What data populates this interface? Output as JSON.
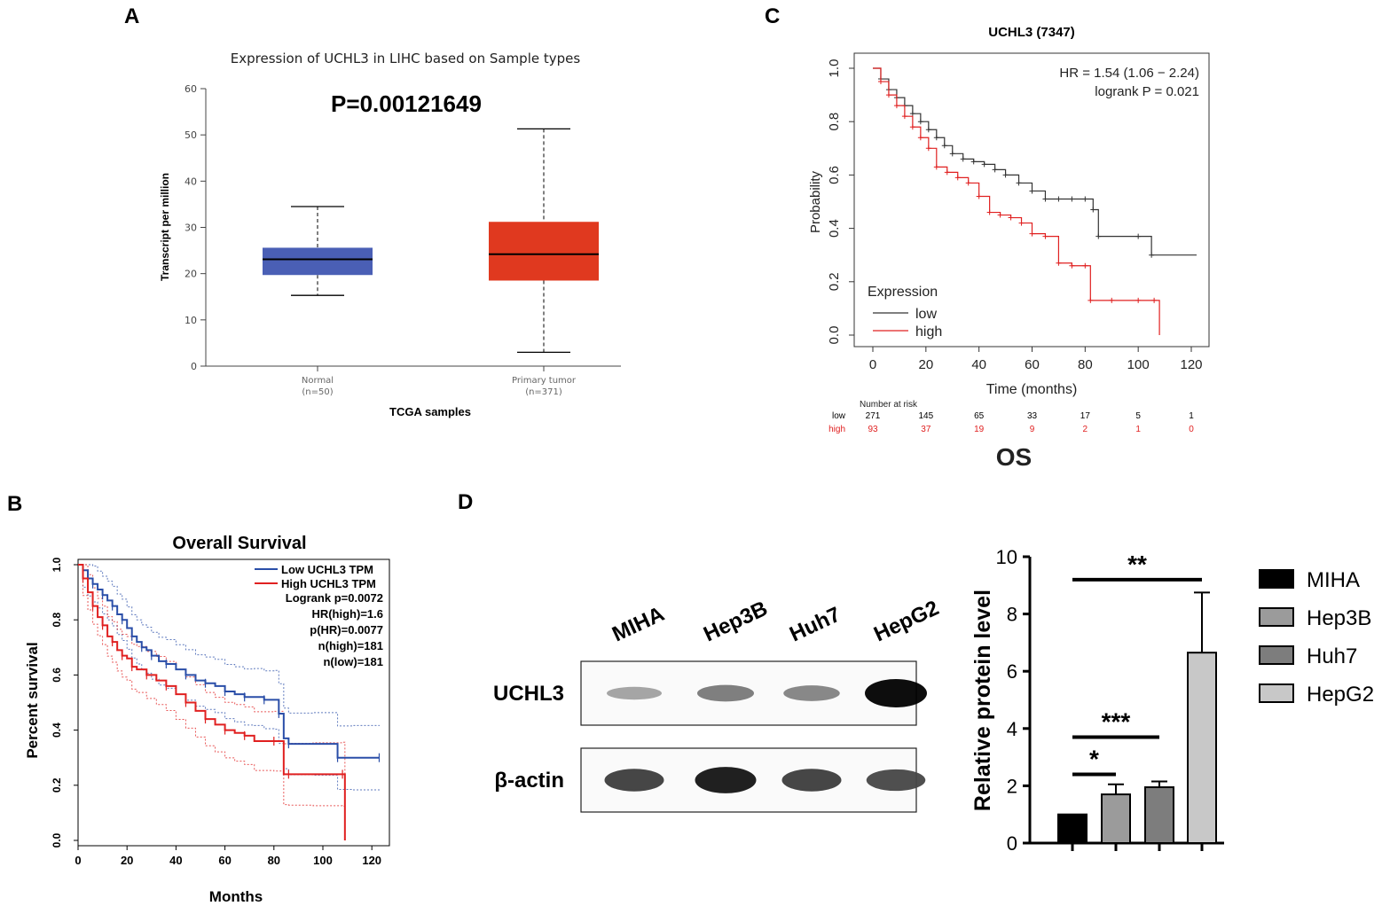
{
  "panels": {
    "a": "A",
    "b": "B",
    "c": "C",
    "d": "D"
  },
  "chart_data": [
    {
      "id": "A",
      "type": "box",
      "title": "Expression of UCHL3 in LIHC based on Sample types",
      "annotation": "P=0.00121649",
      "xlabel": "TCGA samples",
      "ylabel": "Transcript per million",
      "ylim": [
        0,
        60
      ],
      "yticks": [
        0,
        10,
        20,
        30,
        40,
        50,
        60
      ],
      "groups": [
        {
          "name": "Normal",
          "n": "(n=50)",
          "min": 15.3,
          "q1": 19.7,
          "median": 23.1,
          "q3": 25.6,
          "max": 34.5,
          "color": "#4a5fb5"
        },
        {
          "name": "Primary tumor",
          "n": "(n=371)",
          "min": 3.0,
          "q1": 18.5,
          "median": 24.2,
          "q3": 31.2,
          "max": 51.3,
          "color": "#e0391f"
        }
      ]
    },
    {
      "id": "B",
      "type": "line",
      "title": "Overall Survival",
      "xlabel": "Months",
      "ylabel": "Percent survival",
      "xlim": [
        0,
        125
      ],
      "ylim": [
        0,
        1
      ],
      "xticks": [
        0,
        20,
        40,
        60,
        80,
        100,
        120
      ],
      "yticks": [
        0.0,
        0.2,
        0.4,
        0.6,
        0.8,
        1.0
      ],
      "legend": [
        "Low UCHL3 TPM",
        "High UCHL3 TPM"
      ],
      "stats": [
        "Logrank p=0.0072",
        "HR(high)=1.6",
        "p(HR)=0.0077",
        "n(high)=181",
        "n(low)=181"
      ],
      "series": [
        {
          "name": "Low UCHL3 TPM",
          "color": "#2a4ea8",
          "x": [
            0,
            2,
            4,
            6,
            8,
            10,
            12,
            14,
            16,
            18,
            20,
            22,
            24,
            26,
            28,
            30,
            33,
            36,
            40,
            44,
            48,
            52,
            56,
            60,
            64,
            68,
            72,
            76,
            80,
            82,
            84,
            86,
            96,
            106,
            112,
            123
          ],
          "y": [
            1,
            0.98,
            0.95,
            0.93,
            0.91,
            0.89,
            0.87,
            0.85,
            0.82,
            0.8,
            0.77,
            0.74,
            0.72,
            0.7,
            0.69,
            0.67,
            0.65,
            0.64,
            0.62,
            0.6,
            0.58,
            0.57,
            0.56,
            0.54,
            0.53,
            0.52,
            0.52,
            0.51,
            0.51,
            0.46,
            0.37,
            0.35,
            0.35,
            0.3,
            0.3,
            0.3
          ]
        },
        {
          "name": "High UCHL3 TPM",
          "color": "#e02020",
          "x": [
            0,
            2,
            4,
            6,
            8,
            10,
            12,
            14,
            16,
            18,
            20,
            22,
            24,
            28,
            32,
            36,
            40,
            44,
            48,
            52,
            56,
            60,
            64,
            68,
            72,
            80,
            84,
            86,
            96,
            108,
            109
          ],
          "y": [
            1,
            0.95,
            0.9,
            0.85,
            0.81,
            0.78,
            0.74,
            0.72,
            0.69,
            0.67,
            0.66,
            0.63,
            0.62,
            0.6,
            0.58,
            0.56,
            0.53,
            0.5,
            0.47,
            0.44,
            0.42,
            0.4,
            0.39,
            0.38,
            0.36,
            0.36,
            0.24,
            0.24,
            0.24,
            0.24,
            0.0
          ]
        }
      ]
    },
    {
      "id": "C",
      "type": "line",
      "title": "UCHL3 (7347)",
      "xlabel": "Time (months)",
      "ylabel": "Probability",
      "xlim": [
        0,
        125
      ],
      "ylim": [
        0,
        1
      ],
      "xticks": [
        0,
        20,
        40,
        60,
        80,
        100,
        120
      ],
      "yticks": [
        0.0,
        0.2,
        0.4,
        0.6,
        0.8,
        1.0
      ],
      "annotation": [
        "HR = 1.54 (1.06 − 2.24)",
        "logrank P = 0.021"
      ],
      "legend_title": "Expression",
      "legend": [
        "low",
        "high"
      ],
      "risk_table": {
        "title": "Number at risk",
        "rows": [
          {
            "label": "low",
            "color": "#000000",
            "values": [
              "271",
              "145",
              "65",
              "33",
              "17",
              "5",
              "1"
            ]
          },
          {
            "label": "high",
            "color": "#e02020",
            "values": [
              "93",
              "37",
              "19",
              "9",
              "2",
              "1",
              "0"
            ]
          }
        ]
      },
      "footer": "OS",
      "series": [
        {
          "name": "low",
          "color": "#333333",
          "x": [
            0,
            3,
            6,
            9,
            12,
            15,
            18,
            21,
            24,
            27,
            30,
            34,
            38,
            42,
            46,
            50,
            55,
            60,
            65,
            70,
            75,
            80,
            83,
            85,
            100,
            105,
            122
          ],
          "y": [
            1,
            0.96,
            0.92,
            0.89,
            0.86,
            0.83,
            0.8,
            0.77,
            0.74,
            0.71,
            0.68,
            0.66,
            0.65,
            0.64,
            0.62,
            0.6,
            0.57,
            0.54,
            0.51,
            0.51,
            0.51,
            0.51,
            0.47,
            0.37,
            0.37,
            0.3,
            0.3
          ]
        },
        {
          "name": "high",
          "color": "#e02020",
          "x": [
            0,
            3,
            6,
            9,
            12,
            15,
            18,
            21,
            24,
            28,
            32,
            36,
            40,
            44,
            48,
            52,
            56,
            60,
            65,
            70,
            75,
            80,
            82,
            90,
            100,
            106,
            108
          ],
          "y": [
            1,
            0.95,
            0.9,
            0.86,
            0.82,
            0.78,
            0.74,
            0.7,
            0.63,
            0.61,
            0.59,
            0.57,
            0.52,
            0.46,
            0.45,
            0.44,
            0.42,
            0.38,
            0.37,
            0.27,
            0.26,
            0.26,
            0.13,
            0.13,
            0.13,
            0.13,
            0.0
          ]
        }
      ]
    },
    {
      "id": "D-blot",
      "type": "blot",
      "lanes": [
        "MIHA",
        "Hep3B",
        "Huh7",
        "HepG2"
      ],
      "rows": [
        {
          "label": "UCHL3",
          "intensity": [
            0.2,
            0.4,
            0.35,
            1.0
          ]
        },
        {
          "label": "β-actin",
          "intensity": [
            0.7,
            0.9,
            0.7,
            0.65
          ]
        }
      ]
    },
    {
      "id": "D-bar",
      "type": "bar",
      "ylabel": "Relative protein level",
      "ylim": [
        0,
        10
      ],
      "yticks": [
        0,
        2,
        4,
        6,
        8,
        10
      ],
      "categories": [
        "MIHA",
        "Hep3B",
        "Huh7",
        "HepG2"
      ],
      "values": [
        1.0,
        1.7,
        1.95,
        6.65
      ],
      "errors": [
        0,
        0.35,
        0.2,
        2.1
      ],
      "colors": [
        "#000000",
        "#9b9b9b",
        "#7d7d7d",
        "#c8c8c8"
      ],
      "significance": [
        {
          "label": "**",
          "from": 0,
          "to": 3,
          "level": 9.2
        },
        {
          "label": "***",
          "from": 0,
          "to": 2,
          "level": 3.7
        },
        {
          "label": "*",
          "from": 0,
          "to": 1,
          "level": 2.4
        }
      ]
    }
  ]
}
